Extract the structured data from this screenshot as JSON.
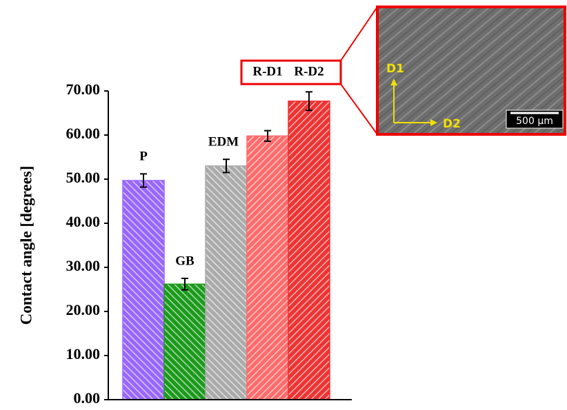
{
  "chart_data": {
    "type": "bar",
    "y_label": "Contact angle [degrees]",
    "categories": [
      "P",
      "GB",
      "EDM",
      "R-D1",
      "R-D2"
    ],
    "values": [
      49.7,
      26.2,
      53.0,
      59.8,
      67.7
    ],
    "errors": [
      1.5,
      1.3,
      1.5,
      1.2,
      2.1
    ],
    "colors": [
      "#9966ff",
      "#1c9a1c",
      "#ababab",
      "#ff6b6b",
      "#ee3333"
    ],
    "ylim": [
      0,
      70
    ],
    "yticks": [
      {
        "value": 0,
        "label": "0.00"
      },
      {
        "value": 10,
        "label": "10.00"
      },
      {
        "value": 20,
        "label": "20.00"
      },
      {
        "value": 30,
        "label": "30.00"
      },
      {
        "value": 40,
        "label": "40.00"
      },
      {
        "value": 50,
        "label": "50.00"
      },
      {
        "value": 60,
        "label": "60.00"
      },
      {
        "value": 70,
        "label": "70.00"
      }
    ],
    "grid": false,
    "inset": {
      "axis_labels": [
        "D1",
        "D2"
      ],
      "scale_bar": "500 µm"
    }
  }
}
